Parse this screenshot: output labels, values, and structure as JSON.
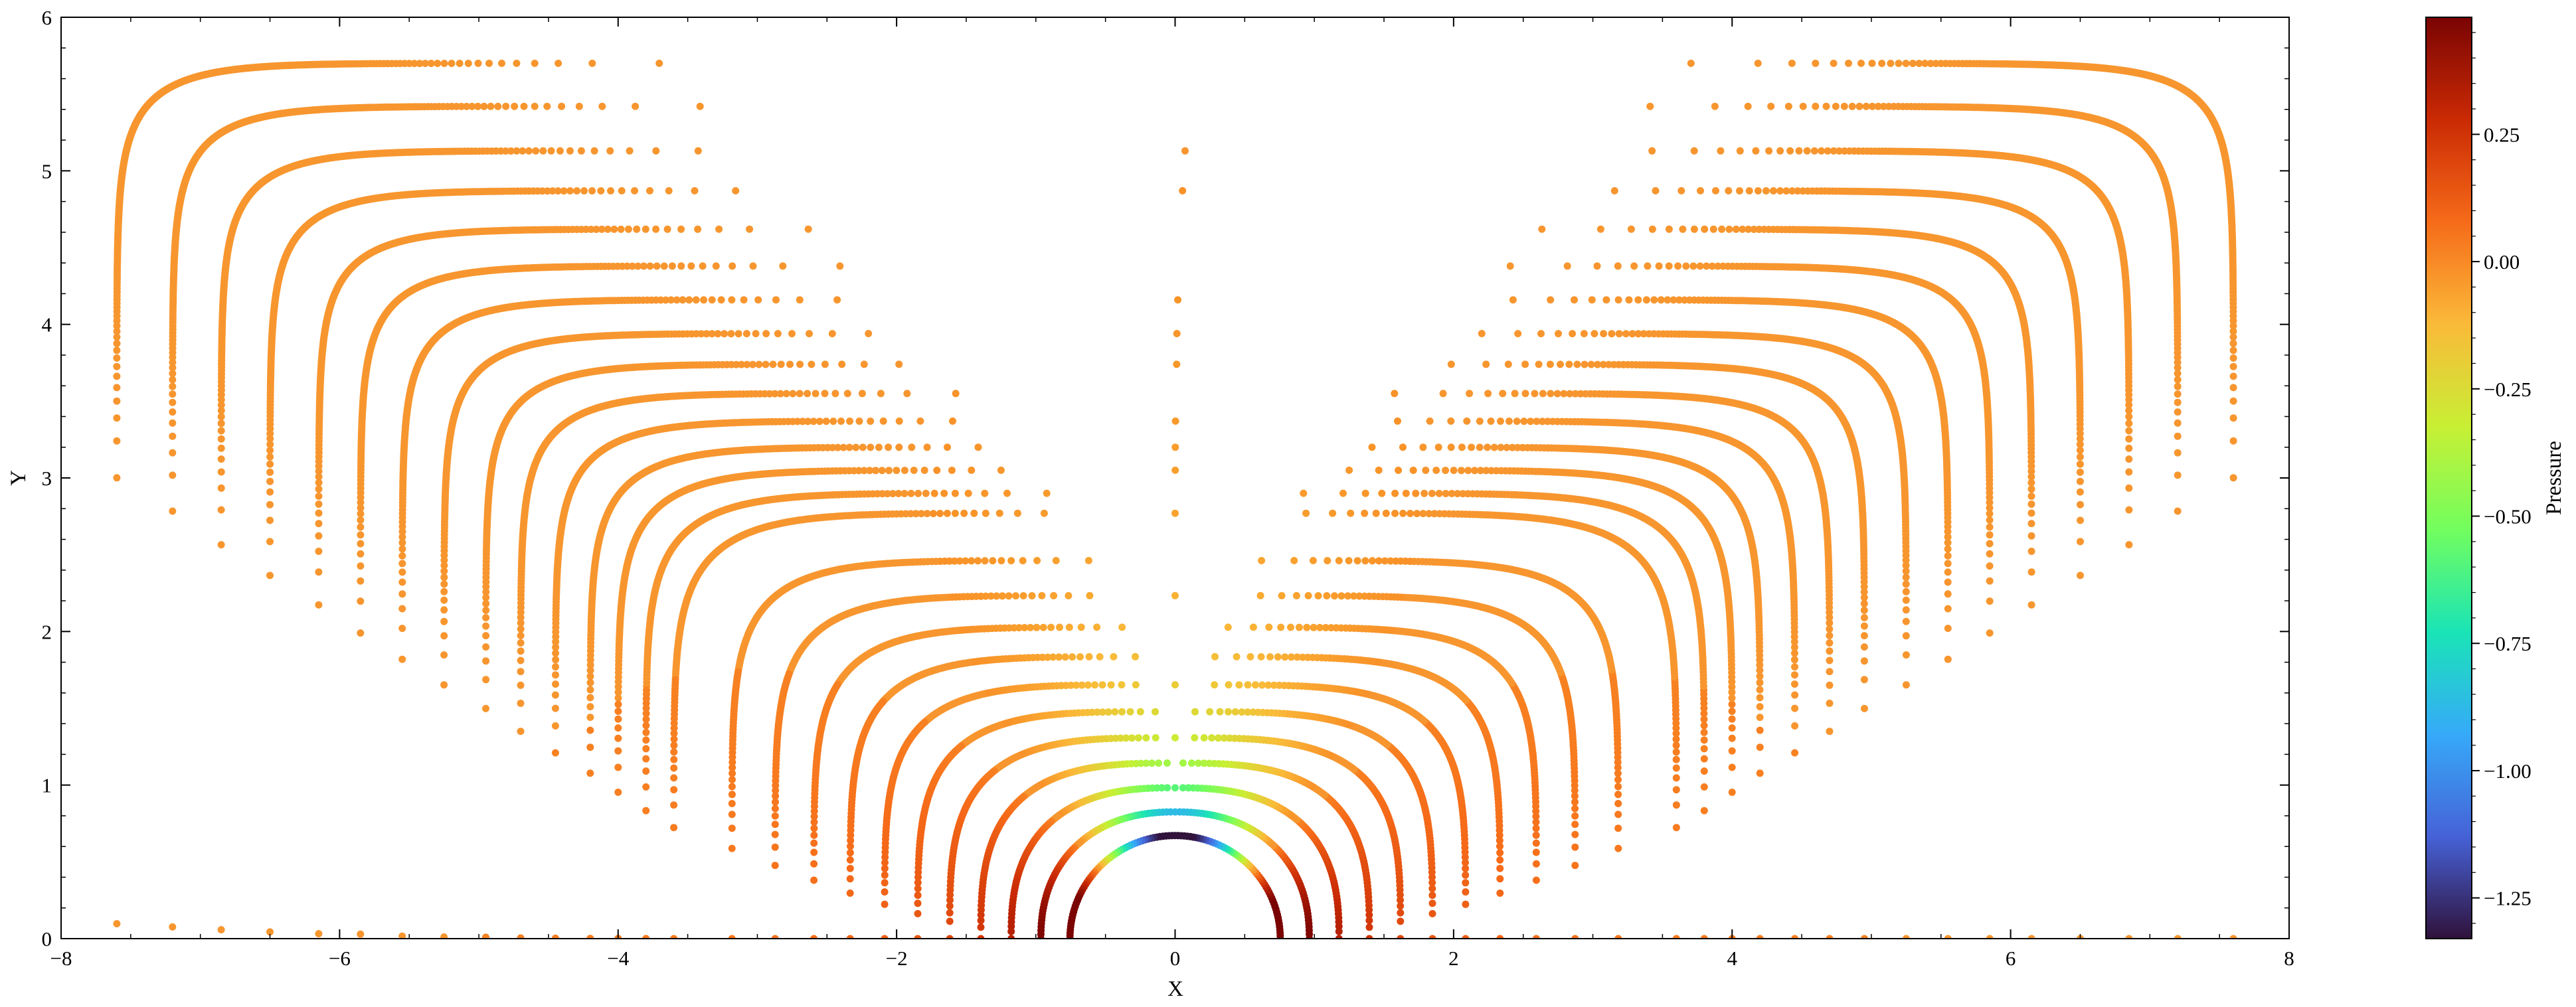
{
  "chart_data": [
    {
      "type": "scatter",
      "xlabel": "X",
      "ylabel": "Y",
      "xlim": [
        -8,
        8
      ],
      "ylim": [
        0,
        6
      ],
      "x_ticks": [
        -8,
        -6,
        -4,
        -2,
        0,
        2,
        4,
        6,
        8
      ],
      "x_tick_labels": [
        "−8",
        "−6",
        "−4",
        "−2",
        "0",
        "2",
        "4",
        "6",
        "8"
      ],
      "y_ticks": [
        0,
        1,
        2,
        3,
        4,
        5,
        6
      ],
      "y_tick_labels": [
        "0",
        "1",
        "2",
        "3",
        "4",
        "5",
        "6"
      ],
      "grid": false,
      "obstacle": {
        "shape": "circle",
        "center": [
          0,
          0
        ],
        "radius": 0.5
      },
      "point_colour_default": "#f7962f",
      "mesh_layers": {
        "count": 26,
        "outer_half_widths": [
          7.6,
          7.2,
          6.85,
          6.5,
          6.15,
          5.85,
          5.55,
          5.25,
          4.95,
          4.7,
          4.45,
          4.2,
          4.0,
          3.8,
          3.6
        ],
        "outer_heights": [
          5.7,
          5.42,
          5.13,
          4.87,
          4.62,
          4.38,
          4.16,
          3.94,
          3.74,
          3.55,
          3.37,
          3.2,
          3.05,
          2.9,
          2.77
        ]
      }
    },
    {
      "type": "colorbar",
      "label": "Pressure",
      "range": [
        -1.33,
        0.48
      ],
      "ticks": [
        -1.25,
        -1.0,
        -0.75,
        -0.5,
        -0.25,
        0.0,
        0.25
      ],
      "tick_labels": [
        "−1.25",
        "−1.00",
        "−0.75",
        "−0.50",
        "−0.25",
        "0.00",
        "0.25"
      ],
      "colormap": "turbo",
      "colormap_stops": [
        "#30123b",
        "#4662d7",
        "#36aaf9",
        "#1ae4b6",
        "#72fe5e",
        "#c8ef34",
        "#faba39",
        "#f66b19",
        "#ca2a04",
        "#7a0403"
      ]
    }
  ]
}
